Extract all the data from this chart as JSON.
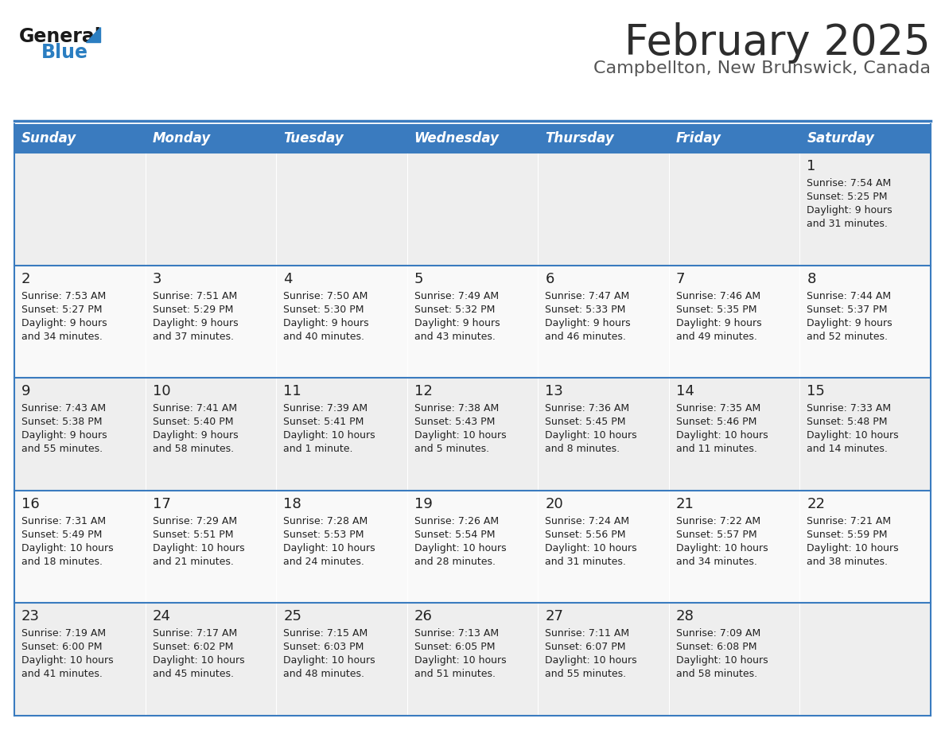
{
  "title": "February 2025",
  "subtitle": "Campbellton, New Brunswick, Canada",
  "header_bg_color": "#3a7bbf",
  "header_text_color": "#ffffff",
  "cell_bg_even": "#eeeeee",
  "cell_bg_odd": "#f9f9f9",
  "border_color": "#3a7bbf",
  "day_names": [
    "Sunday",
    "Monday",
    "Tuesday",
    "Wednesday",
    "Thursday",
    "Friday",
    "Saturday"
  ],
  "title_color": "#2d2d2d",
  "subtitle_color": "#555555",
  "day_number_color": "#222222",
  "cell_text_color": "#222222",
  "logo_general_color": "#1a1a1a",
  "logo_blue_color": "#2b7ec1",
  "figsize": [
    11.88,
    9.18
  ],
  "dpi": 100,
  "weeks": [
    [
      {
        "day": null,
        "sunrise": null,
        "sunset": null,
        "daylight_line1": null,
        "daylight_line2": null
      },
      {
        "day": null,
        "sunrise": null,
        "sunset": null,
        "daylight_line1": null,
        "daylight_line2": null
      },
      {
        "day": null,
        "sunrise": null,
        "sunset": null,
        "daylight_line1": null,
        "daylight_line2": null
      },
      {
        "day": null,
        "sunrise": null,
        "sunset": null,
        "daylight_line1": null,
        "daylight_line2": null
      },
      {
        "day": null,
        "sunrise": null,
        "sunset": null,
        "daylight_line1": null,
        "daylight_line2": null
      },
      {
        "day": null,
        "sunrise": null,
        "sunset": null,
        "daylight_line1": null,
        "daylight_line2": null
      },
      {
        "day": "1",
        "sunrise": "Sunrise: 7:54 AM",
        "sunset": "Sunset: 5:25 PM",
        "daylight_line1": "Daylight: 9 hours",
        "daylight_line2": "and 31 minutes."
      }
    ],
    [
      {
        "day": "2",
        "sunrise": "Sunrise: 7:53 AM",
        "sunset": "Sunset: 5:27 PM",
        "daylight_line1": "Daylight: 9 hours",
        "daylight_line2": "and 34 minutes."
      },
      {
        "day": "3",
        "sunrise": "Sunrise: 7:51 AM",
        "sunset": "Sunset: 5:29 PM",
        "daylight_line1": "Daylight: 9 hours",
        "daylight_line2": "and 37 minutes."
      },
      {
        "day": "4",
        "sunrise": "Sunrise: 7:50 AM",
        "sunset": "Sunset: 5:30 PM",
        "daylight_line1": "Daylight: 9 hours",
        "daylight_line2": "and 40 minutes."
      },
      {
        "day": "5",
        "sunrise": "Sunrise: 7:49 AM",
        "sunset": "Sunset: 5:32 PM",
        "daylight_line1": "Daylight: 9 hours",
        "daylight_line2": "and 43 minutes."
      },
      {
        "day": "6",
        "sunrise": "Sunrise: 7:47 AM",
        "sunset": "Sunset: 5:33 PM",
        "daylight_line1": "Daylight: 9 hours",
        "daylight_line2": "and 46 minutes."
      },
      {
        "day": "7",
        "sunrise": "Sunrise: 7:46 AM",
        "sunset": "Sunset: 5:35 PM",
        "daylight_line1": "Daylight: 9 hours",
        "daylight_line2": "and 49 minutes."
      },
      {
        "day": "8",
        "sunrise": "Sunrise: 7:44 AM",
        "sunset": "Sunset: 5:37 PM",
        "daylight_line1": "Daylight: 9 hours",
        "daylight_line2": "and 52 minutes."
      }
    ],
    [
      {
        "day": "9",
        "sunrise": "Sunrise: 7:43 AM",
        "sunset": "Sunset: 5:38 PM",
        "daylight_line1": "Daylight: 9 hours",
        "daylight_line2": "and 55 minutes."
      },
      {
        "day": "10",
        "sunrise": "Sunrise: 7:41 AM",
        "sunset": "Sunset: 5:40 PM",
        "daylight_line1": "Daylight: 9 hours",
        "daylight_line2": "and 58 minutes."
      },
      {
        "day": "11",
        "sunrise": "Sunrise: 7:39 AM",
        "sunset": "Sunset: 5:41 PM",
        "daylight_line1": "Daylight: 10 hours",
        "daylight_line2": "and 1 minute."
      },
      {
        "day": "12",
        "sunrise": "Sunrise: 7:38 AM",
        "sunset": "Sunset: 5:43 PM",
        "daylight_line1": "Daylight: 10 hours",
        "daylight_line2": "and 5 minutes."
      },
      {
        "day": "13",
        "sunrise": "Sunrise: 7:36 AM",
        "sunset": "Sunset: 5:45 PM",
        "daylight_line1": "Daylight: 10 hours",
        "daylight_line2": "and 8 minutes."
      },
      {
        "day": "14",
        "sunrise": "Sunrise: 7:35 AM",
        "sunset": "Sunset: 5:46 PM",
        "daylight_line1": "Daylight: 10 hours",
        "daylight_line2": "and 11 minutes."
      },
      {
        "day": "15",
        "sunrise": "Sunrise: 7:33 AM",
        "sunset": "Sunset: 5:48 PM",
        "daylight_line1": "Daylight: 10 hours",
        "daylight_line2": "and 14 minutes."
      }
    ],
    [
      {
        "day": "16",
        "sunrise": "Sunrise: 7:31 AM",
        "sunset": "Sunset: 5:49 PM",
        "daylight_line1": "Daylight: 10 hours",
        "daylight_line2": "and 18 minutes."
      },
      {
        "day": "17",
        "sunrise": "Sunrise: 7:29 AM",
        "sunset": "Sunset: 5:51 PM",
        "daylight_line1": "Daylight: 10 hours",
        "daylight_line2": "and 21 minutes."
      },
      {
        "day": "18",
        "sunrise": "Sunrise: 7:28 AM",
        "sunset": "Sunset: 5:53 PM",
        "daylight_line1": "Daylight: 10 hours",
        "daylight_line2": "and 24 minutes."
      },
      {
        "day": "19",
        "sunrise": "Sunrise: 7:26 AM",
        "sunset": "Sunset: 5:54 PM",
        "daylight_line1": "Daylight: 10 hours",
        "daylight_line2": "and 28 minutes."
      },
      {
        "day": "20",
        "sunrise": "Sunrise: 7:24 AM",
        "sunset": "Sunset: 5:56 PM",
        "daylight_line1": "Daylight: 10 hours",
        "daylight_line2": "and 31 minutes."
      },
      {
        "day": "21",
        "sunrise": "Sunrise: 7:22 AM",
        "sunset": "Sunset: 5:57 PM",
        "daylight_line1": "Daylight: 10 hours",
        "daylight_line2": "and 34 minutes."
      },
      {
        "day": "22",
        "sunrise": "Sunrise: 7:21 AM",
        "sunset": "Sunset: 5:59 PM",
        "daylight_line1": "Daylight: 10 hours",
        "daylight_line2": "and 38 minutes."
      }
    ],
    [
      {
        "day": "23",
        "sunrise": "Sunrise: 7:19 AM",
        "sunset": "Sunset: 6:00 PM",
        "daylight_line1": "Daylight: 10 hours",
        "daylight_line2": "and 41 minutes."
      },
      {
        "day": "24",
        "sunrise": "Sunrise: 7:17 AM",
        "sunset": "Sunset: 6:02 PM",
        "daylight_line1": "Daylight: 10 hours",
        "daylight_line2": "and 45 minutes."
      },
      {
        "day": "25",
        "sunrise": "Sunrise: 7:15 AM",
        "sunset": "Sunset: 6:03 PM",
        "daylight_line1": "Daylight: 10 hours",
        "daylight_line2": "and 48 minutes."
      },
      {
        "day": "26",
        "sunrise": "Sunrise: 7:13 AM",
        "sunset": "Sunset: 6:05 PM",
        "daylight_line1": "Daylight: 10 hours",
        "daylight_line2": "and 51 minutes."
      },
      {
        "day": "27",
        "sunrise": "Sunrise: 7:11 AM",
        "sunset": "Sunset: 6:07 PM",
        "daylight_line1": "Daylight: 10 hours",
        "daylight_line2": "and 55 minutes."
      },
      {
        "day": "28",
        "sunrise": "Sunrise: 7:09 AM",
        "sunset": "Sunset: 6:08 PM",
        "daylight_line1": "Daylight: 10 hours",
        "daylight_line2": "and 58 minutes."
      },
      {
        "day": null,
        "sunrise": null,
        "sunset": null,
        "daylight_line1": null,
        "daylight_line2": null
      }
    ]
  ]
}
